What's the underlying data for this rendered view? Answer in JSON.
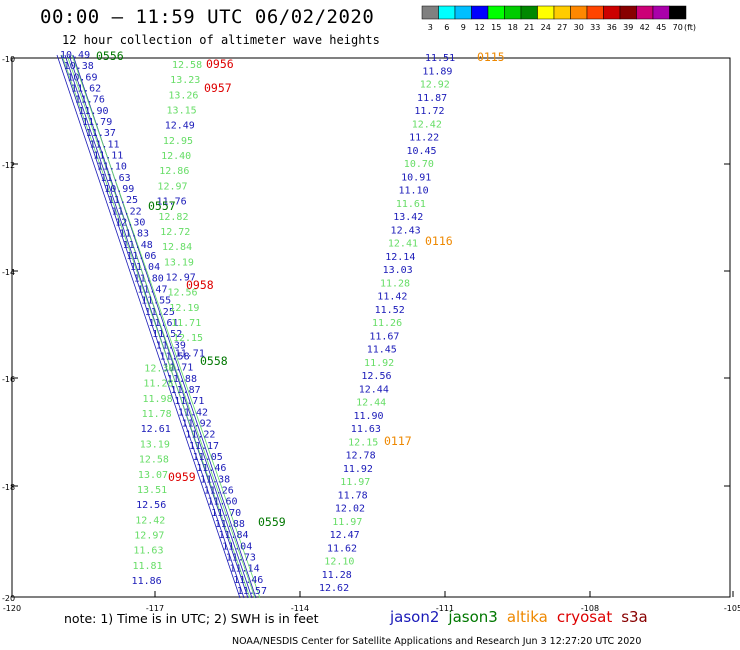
{
  "header": {
    "title": "00:00 – 11:59 UTC 06/02/2020",
    "subtitle": "12 hour collection of altimeter wave heights"
  },
  "colorbar": {
    "unit": "(ft)",
    "ticks": [
      "3",
      "6",
      "9",
      "12",
      "15",
      "18",
      "21",
      "24",
      "27",
      "30",
      "33",
      "36",
      "39",
      "42",
      "45",
      "70"
    ],
    "colors": [
      "#808080",
      "#00ffff",
      "#00bfff",
      "#0000ff",
      "#00ff00",
      "#00cc00",
      "#008800",
      "#ffff00",
      "#ffcc00",
      "#ff8800",
      "#ff4400",
      "#cc0000",
      "#880000",
      "#cc0077",
      "#aa00aa",
      "#000000"
    ]
  },
  "axes": {
    "lat_labels": [
      "-10",
      "-12",
      "-14",
      "-16",
      "-18",
      "-20"
    ],
    "lon_labels": [
      "-120",
      "-117",
      "-114",
      "-111",
      "-108",
      "-105"
    ]
  },
  "tracks": {
    "jason2_left": [
      "10.49",
      "10.38",
      "10.69",
      "11.62",
      "11.76",
      "11.90",
      "11.79",
      "11.37",
      "11.11",
      "11.11",
      "11.10",
      "11.63",
      "10.99",
      "11.25",
      "11.22",
      "12.30",
      "11.83",
      "11.48",
      "11.06",
      "11.04",
      "11.80",
      "11.47",
      "11.55",
      "11.25",
      "11.61",
      "11.52",
      "11.39",
      "11.58",
      "11.71",
      "11.88",
      "11.87",
      "11.71",
      "11.42",
      "11.92",
      "11.22",
      "11.17",
      "11.05",
      "11.46",
      "11.38",
      "11.26",
      "11.60",
      "11.70",
      "11.88",
      "11.84",
      "11.04",
      "11.73",
      "11.14",
      "11.46",
      "11.57"
    ],
    "jason3_left": [
      "12.58",
      "13.23",
      "13.26",
      "13.15",
      "12.49",
      "12.95",
      "12.40",
      "12.86",
      "12.97",
      "11.76",
      "12.82",
      "12.72",
      "12.84",
      "13.19",
      "12.97",
      "12.56",
      "12.19",
      "11.71",
      "12.15",
      "11.71",
      "12.30",
      "11.28",
      "11.98",
      "11.78",
      "12.61",
      "13.19",
      "12.58",
      "13.07",
      "13.51",
      "12.56",
      "12.42",
      "12.97",
      "11.63",
      "11.81",
      "11.86"
    ],
    "right": [
      "11.51",
      "11.89",
      "12.92",
      "11.87",
      "11.72",
      "12.42",
      "11.22",
      "10.45",
      "10.70",
      "10.91",
      "11.10",
      "11.61",
      "13.42",
      "12.43",
      "12.41",
      "12.14",
      "13.03",
      "11.28",
      "11.42",
      "11.52",
      "11.26",
      "11.67",
      "11.45",
      "11.92",
      "12.56",
      "12.44",
      "12.44",
      "11.90",
      "11.63",
      "12.15",
      "12.78",
      "11.92",
      "11.97",
      "11.78",
      "12.02",
      "11.97",
      "12.47",
      "11.62",
      "12.10",
      "11.28",
      "12.62"
    ]
  },
  "time_labels": [
    {
      "text": "0556",
      "sat": "jason3"
    },
    {
      "text": "0956",
      "sat": "cryosat"
    },
    {
      "text": "0957",
      "sat": "cryosat"
    },
    {
      "text": "0557",
      "sat": "jason3"
    },
    {
      "text": "0958",
      "sat": "cryosat"
    },
    {
      "text": "0558",
      "sat": "jason3"
    },
    {
      "text": "0959",
      "sat": "cryosat"
    },
    {
      "text": "0559",
      "sat": "jason3"
    },
    {
      "text": "0115",
      "sat": "altika"
    },
    {
      "text": "0116",
      "sat": "altika"
    },
    {
      "text": "0117",
      "sat": "altika"
    }
  ],
  "sat_colors": {
    "jason2": "#1a1ab8",
    "jason3": "#007700",
    "green_light": "#66dd66",
    "altika": "#ee8800",
    "cryosat": "#dd0000",
    "s3a": "#880000"
  },
  "legend_sats": [
    "jason2",
    "jason3",
    "altika",
    "cryosat",
    "s3a"
  ],
  "note": "note: 1) Time is in UTC; 2) SWH is in feet",
  "footer": "NOAA/NESDIS Center for Satellite Applications and Research   Jun  3 12:27:20 UTC 2020"
}
